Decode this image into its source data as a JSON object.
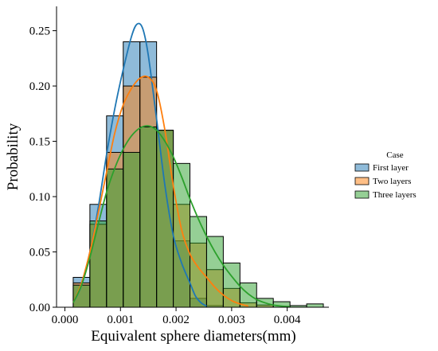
{
  "chart_data": {
    "type": "histogram",
    "xlabel": "Equivalent sphere diameters(mm)",
    "ylabel": "Probability",
    "xlim": [
      -0.00015,
      0.00475
    ],
    "ylim": [
      0,
      0.272
    ],
    "x_ticks": [
      0.0,
      0.001,
      0.002,
      0.003,
      0.004
    ],
    "x_tick_labels": [
      "0.000",
      "0.001",
      "0.002",
      "0.003",
      "0.004"
    ],
    "y_ticks": [
      0.0,
      0.05,
      0.1,
      0.15,
      0.2,
      0.25
    ],
    "y_tick_labels": [
      "0.00",
      "0.05",
      "0.10",
      "0.15",
      "0.20",
      "0.25"
    ],
    "bin_edges": [
      0.00015,
      0.00045,
      0.00075,
      0.00105,
      0.00135,
      0.00165,
      0.00195,
      0.00225,
      0.00255,
      0.00285,
      0.00315,
      0.00345,
      0.00375,
      0.00405,
      0.00435,
      0.00465
    ],
    "legend": {
      "title": "Case",
      "placement": "center-right"
    },
    "series": [
      {
        "name": "First layer",
        "color": "#1f77b4",
        "values": [
          0.027,
          0.093,
          0.173,
          0.24,
          0.24,
          0.16,
          0.06,
          0.008,
          0.0015,
          0,
          0,
          0,
          0,
          0,
          0
        ],
        "kde": [
          [
            0.00015,
            0.004
          ],
          [
            0.0003,
            0.02
          ],
          [
            0.00045,
            0.05
          ],
          [
            0.0006,
            0.09
          ],
          [
            0.00075,
            0.138
          ],
          [
            0.0009,
            0.18
          ],
          [
            0.00105,
            0.215
          ],
          [
            0.0012,
            0.245
          ],
          [
            0.0013,
            0.256
          ],
          [
            0.0014,
            0.252
          ],
          [
            0.0015,
            0.228
          ],
          [
            0.00165,
            0.17
          ],
          [
            0.0018,
            0.11
          ],
          [
            0.00195,
            0.065
          ],
          [
            0.0021,
            0.04
          ],
          [
            0.00225,
            0.022
          ],
          [
            0.00235,
            0.01
          ],
          [
            0.00245,
            0.004
          ],
          [
            0.00255,
            0.001
          ]
        ]
      },
      {
        "name": "Two layers",
        "color": "#ff7f0e",
        "values": [
          0.022,
          0.075,
          0.14,
          0.2,
          0.208,
          0.16,
          0.093,
          0.058,
          0.034,
          0.017,
          0.004,
          0.002,
          0,
          0,
          0
        ],
        "kde": [
          [
            0.00015,
            0.004
          ],
          [
            0.0003,
            0.022
          ],
          [
            0.00045,
            0.05
          ],
          [
            0.0006,
            0.085
          ],
          [
            0.00075,
            0.122
          ],
          [
            0.0009,
            0.158
          ],
          [
            0.00105,
            0.183
          ],
          [
            0.0012,
            0.198
          ],
          [
            0.00135,
            0.207
          ],
          [
            0.0015,
            0.208
          ],
          [
            0.00165,
            0.196
          ],
          [
            0.0018,
            0.16
          ],
          [
            0.00195,
            0.11
          ],
          [
            0.0021,
            0.07
          ],
          [
            0.00225,
            0.048
          ],
          [
            0.0024,
            0.036
          ],
          [
            0.00255,
            0.027
          ],
          [
            0.0027,
            0.018
          ],
          [
            0.00285,
            0.011
          ],
          [
            0.003,
            0.006
          ],
          [
            0.00315,
            0.003
          ],
          [
            0.0033,
            0.001
          ]
        ]
      },
      {
        "name": "Three layers",
        "color": "#2ca02c",
        "values": [
          0.02,
          0.078,
          0.125,
          0.14,
          0.163,
          0.16,
          0.13,
          0.082,
          0.064,
          0.04,
          0.022,
          0.008,
          0.005,
          0.0015,
          0.003
        ],
        "kde": [
          [
            0.00015,
            0.004
          ],
          [
            0.0003,
            0.02
          ],
          [
            0.00045,
            0.045
          ],
          [
            0.0006,
            0.075
          ],
          [
            0.00075,
            0.104
          ],
          [
            0.0009,
            0.126
          ],
          [
            0.00105,
            0.143
          ],
          [
            0.0012,
            0.155
          ],
          [
            0.00135,
            0.162
          ],
          [
            0.0015,
            0.164
          ],
          [
            0.00165,
            0.16
          ],
          [
            0.0018,
            0.15
          ],
          [
            0.00195,
            0.136
          ],
          [
            0.0021,
            0.118
          ],
          [
            0.00225,
            0.098
          ],
          [
            0.0024,
            0.08
          ],
          [
            0.00255,
            0.064
          ],
          [
            0.0027,
            0.05
          ],
          [
            0.00285,
            0.038
          ],
          [
            0.003,
            0.028
          ],
          [
            0.00315,
            0.019
          ],
          [
            0.0033,
            0.012
          ],
          [
            0.00345,
            0.007
          ],
          [
            0.0036,
            0.004
          ],
          [
            0.00375,
            0.002
          ],
          [
            0.0039,
            0.001
          ],
          [
            0.00405,
            0.0005
          ]
        ]
      }
    ]
  }
}
